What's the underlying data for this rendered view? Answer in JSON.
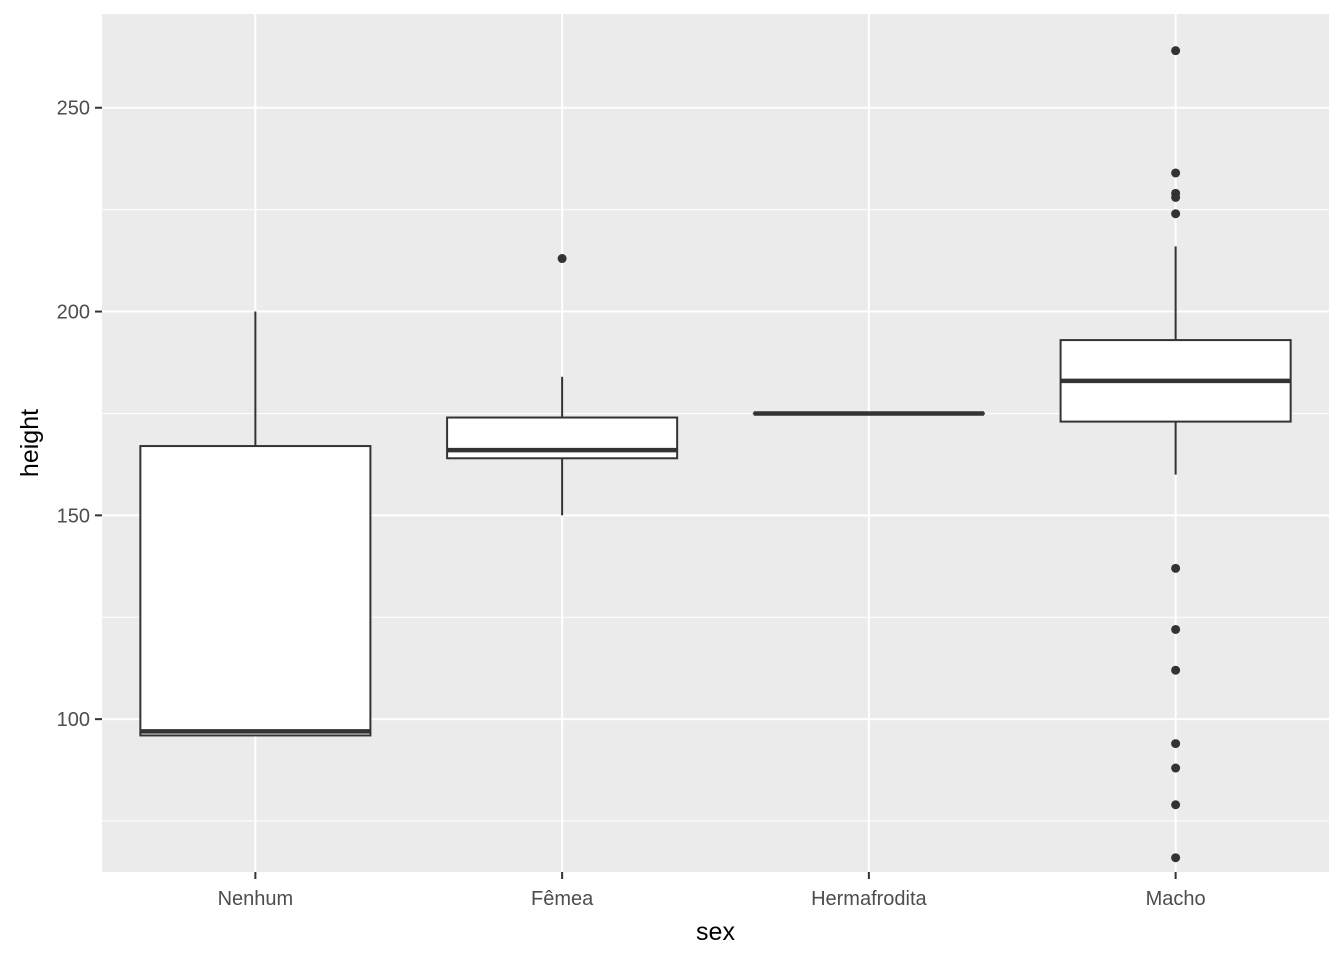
{
  "chart_data": {
    "type": "boxplot",
    "xlabel": "sex",
    "ylabel": "height",
    "categories": [
      "Nenhum",
      "Fêmea",
      "Hermafrodita",
      "Macho"
    ],
    "ylim": [
      62.5,
      273
    ],
    "yticks": [
      100,
      150,
      200,
      250
    ],
    "grid": true,
    "legend": "none",
    "boxes": [
      {
        "category": "Nenhum",
        "lower_whisker": 96,
        "q1": 96,
        "median": 97,
        "q3": 167,
        "upper_whisker": 200,
        "outliers": []
      },
      {
        "category": "Fêmea",
        "lower_whisker": 150,
        "q1": 164,
        "median": 166,
        "q3": 174,
        "upper_whisker": 184,
        "outliers": [
          213
        ]
      },
      {
        "category": "Hermafrodita",
        "lower_whisker": 175,
        "q1": 175,
        "median": 175,
        "q3": 175,
        "upper_whisker": 175,
        "outliers": []
      },
      {
        "category": "Macho",
        "lower_whisker": 160,
        "q1": 173,
        "median": 183,
        "q3": 193,
        "upper_whisker": 216,
        "outliers": [
          264,
          234,
          229,
          228,
          224,
          137,
          122,
          112,
          94,
          88,
          79,
          66
        ]
      }
    ],
    "colors": {
      "panel_background": "#ebebeb",
      "grid_major": "#ffffff",
      "box_fill": "#ffffff",
      "box_stroke": "#333333",
      "outlier": "#333333"
    }
  }
}
